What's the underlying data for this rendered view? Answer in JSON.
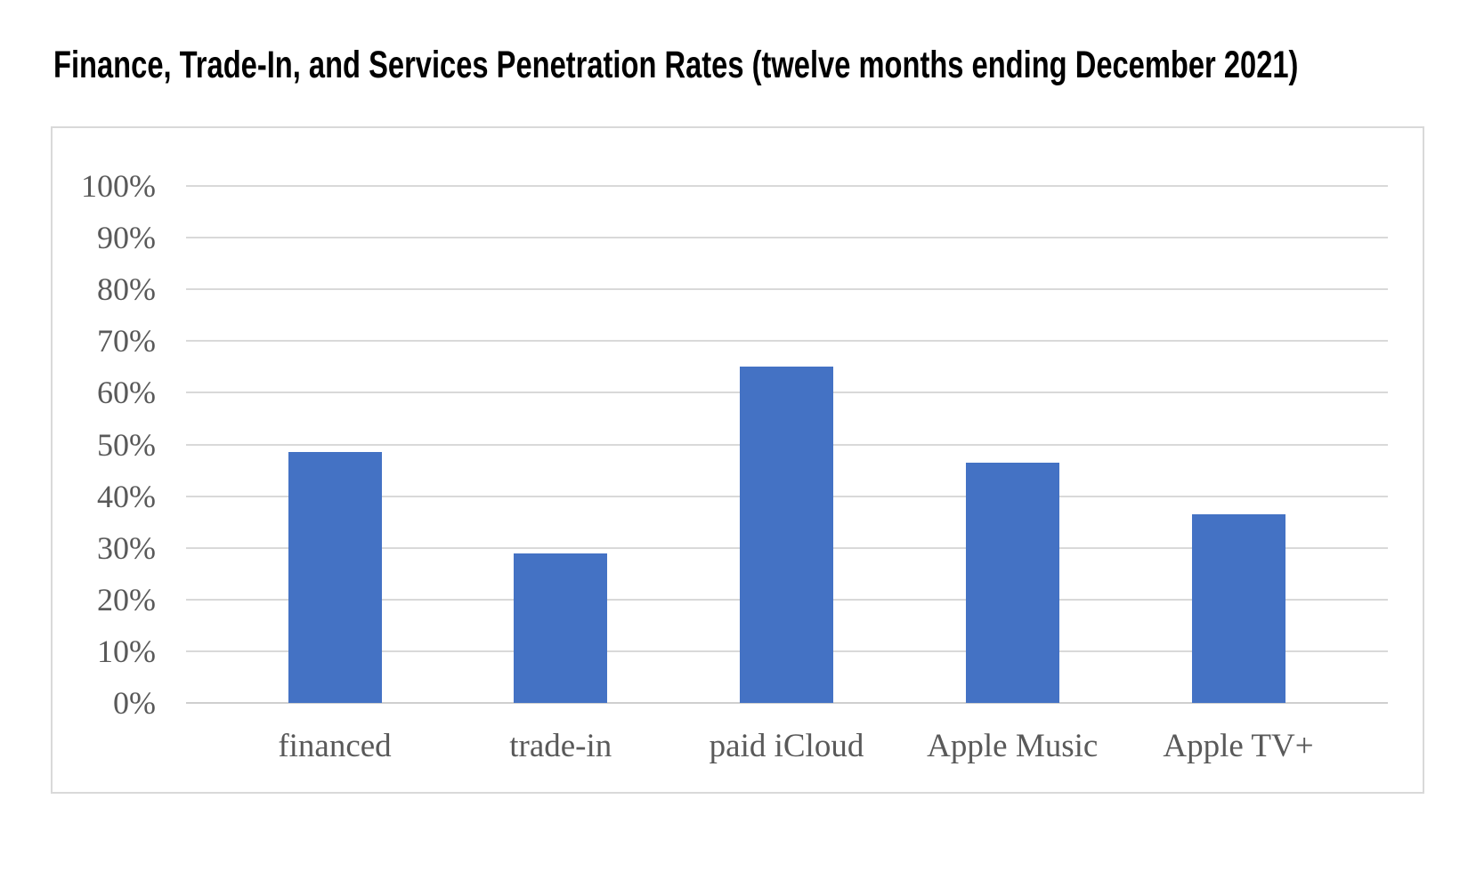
{
  "title": "Finance, Trade-In, and Services Penetration Rates (twelve months ending December 2021)",
  "chart_data": {
    "type": "bar",
    "title": "Finance, Trade-In, and Services Penetration Rates (twelve months ending December 2021)",
    "categories": [
      "financed",
      "trade-in",
      "paid iCloud",
      "Apple Music",
      "Apple TV+"
    ],
    "values": [
      48.5,
      29,
      65,
      46.5,
      36.5
    ],
    "value_unit": "%",
    "xlabel": "",
    "ylabel": "",
    "ylim": [
      0,
      100
    ],
    "y_tick_step": 10,
    "y_tick_labels": [
      "0%",
      "10%",
      "20%",
      "30%",
      "40%",
      "50%",
      "60%",
      "70%",
      "80%",
      "90%",
      "100%"
    ],
    "grid": true,
    "legend": false,
    "colors": {
      "bar": "#4472C4",
      "gridline": "#D9D9D9",
      "baseline": "#CFCFCF",
      "tick_text": "#595959",
      "category_text": "#595959",
      "title_text": "#000000",
      "frame_border": "#D9D9D9",
      "background": "#FFFFFF"
    }
  }
}
